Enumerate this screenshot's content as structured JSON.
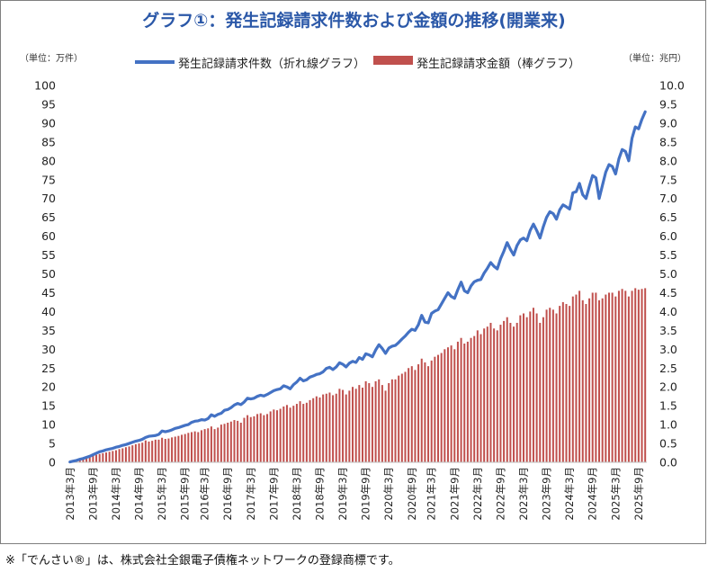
{
  "title": "グラフ①：発生記録請求件数および金額の推移(開業来)",
  "footnote": "※「でんさい®」は、株式会社全銀電子債権ネットワークの登録商標です。",
  "colors": {
    "line": "#4472c4",
    "bar": "#c0504d",
    "frame": "#7f7f7f",
    "title": "#2b58a8"
  },
  "chart_data": {
    "type": "bar+line",
    "title": "グラフ①：発生記録請求件数および金額の推移(開業来)",
    "left_axis": {
      "unit_label": "（単位：万件）",
      "ylim": [
        0,
        100
      ],
      "ticks": [
        "0",
        "5",
        "10",
        "15",
        "20",
        "25",
        "30",
        "35",
        "40",
        "45",
        "50",
        "55",
        "60",
        "65",
        "70",
        "75",
        "80",
        "85",
        "90",
        "95",
        "100"
      ]
    },
    "right_axis": {
      "unit_label": "（単位：兆円）",
      "ylim": [
        0,
        10
      ],
      "ticks": [
        "0.0",
        "0.5",
        "1.0",
        "1.5",
        "2.0",
        "2.5",
        "3.0",
        "3.5",
        "4.0",
        "4.5",
        "5.0",
        "5.5",
        "6.0",
        "6.5",
        "7.0",
        "7.5",
        "8.0",
        "8.5",
        "9.0",
        "9.5",
        "10.0"
      ]
    },
    "x_tick_labels": [
      "2013年3月",
      "2013年9月",
      "2014年3月",
      "2014年9月",
      "2015年3月",
      "2015年9月",
      "2016年3月",
      "2016年9月",
      "2017年3月",
      "2017年9月",
      "2018年3月",
      "2018年9月",
      "2019年3月",
      "2019年9月",
      "2020年3月",
      "2020年9月",
      "2021年3月",
      "2021年9月",
      "2022年3月",
      "2022年9月",
      "2023年3月",
      "2023年9月",
      "2024年3月",
      "2024年9月",
      "2025年3月",
      "2025年9月"
    ],
    "series": [
      {
        "name": "発生記録請求件数（折れ線グラフ）",
        "type": "line",
        "axis": "left",
        "values": [
          0.1,
          0.3,
          0.5,
          0.8,
          1.0,
          1.3,
          1.6,
          2.0,
          2.4,
          2.8,
          3.0,
          3.3,
          3.5,
          3.7,
          4.0,
          4.2,
          4.5,
          4.7,
          5.0,
          5.3,
          5.6,
          5.8,
          6.1,
          6.6,
          6.9,
          7.0,
          7.1,
          7.4,
          8.3,
          8.1,
          8.3,
          8.6,
          9.0,
          9.2,
          9.5,
          9.8,
          10.0,
          10.6,
          10.9,
          11.0,
          11.3,
          11.2,
          11.6,
          12.6,
          12.2,
          12.7,
          13.0,
          13.8,
          14.0,
          14.5,
          15.2,
          15.6,
          15.3,
          16.0,
          17.0,
          16.8,
          17.0,
          17.5,
          17.8,
          17.6,
          18.0,
          18.5,
          19.0,
          19.3,
          19.5,
          20.3,
          20.0,
          19.5,
          20.6,
          21.3,
          22.3,
          21.6,
          21.9,
          22.6,
          22.9,
          23.3,
          23.5,
          24.0,
          24.9,
          25.2,
          24.6,
          25.3,
          26.4,
          26.0,
          25.3,
          26.3,
          26.8,
          26.5,
          27.8,
          27.3,
          28.8,
          28.5,
          28.0,
          29.8,
          31.2,
          30.2,
          28.9,
          30.3,
          30.8,
          31.0,
          31.8,
          32.7,
          33.5,
          34.5,
          35.3,
          35.0,
          36.5,
          39.0,
          37.2,
          37.0,
          39.5,
          40.1,
          40.5,
          42.0,
          43.5,
          45.0,
          44.0,
          43.5,
          45.8,
          47.8,
          45.5,
          45.0,
          46.8,
          47.9,
          48.3,
          48.5,
          50.2,
          51.5,
          53.0,
          52.0,
          51.3,
          54.0,
          56.0,
          58.3,
          56.5,
          55.0,
          57.5,
          59.0,
          59.5,
          58.8,
          61.5,
          63.2,
          61.5,
          59.5,
          62.5,
          65.0,
          66.5,
          66.0,
          64.5,
          67.0,
          68.3,
          67.8,
          67.2,
          71.5,
          71.8,
          74.0,
          71.0,
          70.0,
          73.2,
          76.1,
          75.5,
          70.0,
          73.5,
          77.0,
          79.0,
          78.5,
          76.5,
          80.5,
          83.0,
          82.5,
          80.0,
          86.0,
          89.0,
          88.5,
          91.0,
          93.0
        ]
      },
      {
        "name": "発生記録請求金額（棒グラフ）",
        "type": "bar",
        "axis": "right",
        "values": [
          0.02,
          0.04,
          0.06,
          0.08,
          0.1,
          0.13,
          0.16,
          0.18,
          0.2,
          0.22,
          0.24,
          0.26,
          0.28,
          0.3,
          0.32,
          0.35,
          0.37,
          0.4,
          0.42,
          0.45,
          0.48,
          0.5,
          0.52,
          0.58,
          0.55,
          0.57,
          0.6,
          0.6,
          0.65,
          0.62,
          0.63,
          0.66,
          0.68,
          0.7,
          0.73,
          0.75,
          0.78,
          0.8,
          0.82,
          0.8,
          0.85,
          0.88,
          0.9,
          0.95,
          0.88,
          0.92,
          1.0,
          1.02,
          1.05,
          1.08,
          1.12,
          1.1,
          1.05,
          1.18,
          1.25,
          1.2,
          1.22,
          1.28,
          1.3,
          1.25,
          1.28,
          1.35,
          1.4,
          1.38,
          1.42,
          1.48,
          1.52,
          1.45,
          1.5,
          1.55,
          1.62,
          1.55,
          1.58,
          1.65,
          1.7,
          1.75,
          1.72,
          1.8,
          1.82,
          1.85,
          1.78,
          1.82,
          1.95,
          1.92,
          1.8,
          1.9,
          2.0,
          1.95,
          2.05,
          1.98,
          2.15,
          2.1,
          2.0,
          2.15,
          2.2,
          2.05,
          1.9,
          2.1,
          2.2,
          2.2,
          2.3,
          2.35,
          2.4,
          2.5,
          2.55,
          2.45,
          2.6,
          2.75,
          2.65,
          2.55,
          2.7,
          2.8,
          2.85,
          2.9,
          3.0,
          3.05,
          3.1,
          3.0,
          3.2,
          3.3,
          3.15,
          3.2,
          3.3,
          3.35,
          3.5,
          3.4,
          3.55,
          3.6,
          3.7,
          3.55,
          3.5,
          3.65,
          3.75,
          3.85,
          3.7,
          3.6,
          3.7,
          3.9,
          3.95,
          3.85,
          4.0,
          4.1,
          3.95,
          3.7,
          3.85,
          4.05,
          4.1,
          4.05,
          3.95,
          4.15,
          4.25,
          4.2,
          4.15,
          4.4,
          4.45,
          4.55,
          4.3,
          4.2,
          4.35,
          4.5,
          4.5,
          4.3,
          4.35,
          4.45,
          4.5,
          4.5,
          4.4,
          4.55,
          4.6,
          4.55,
          4.4,
          4.55,
          4.62,
          4.58,
          4.6,
          4.62
        ]
      }
    ],
    "grid": false,
    "legend": "top"
  }
}
